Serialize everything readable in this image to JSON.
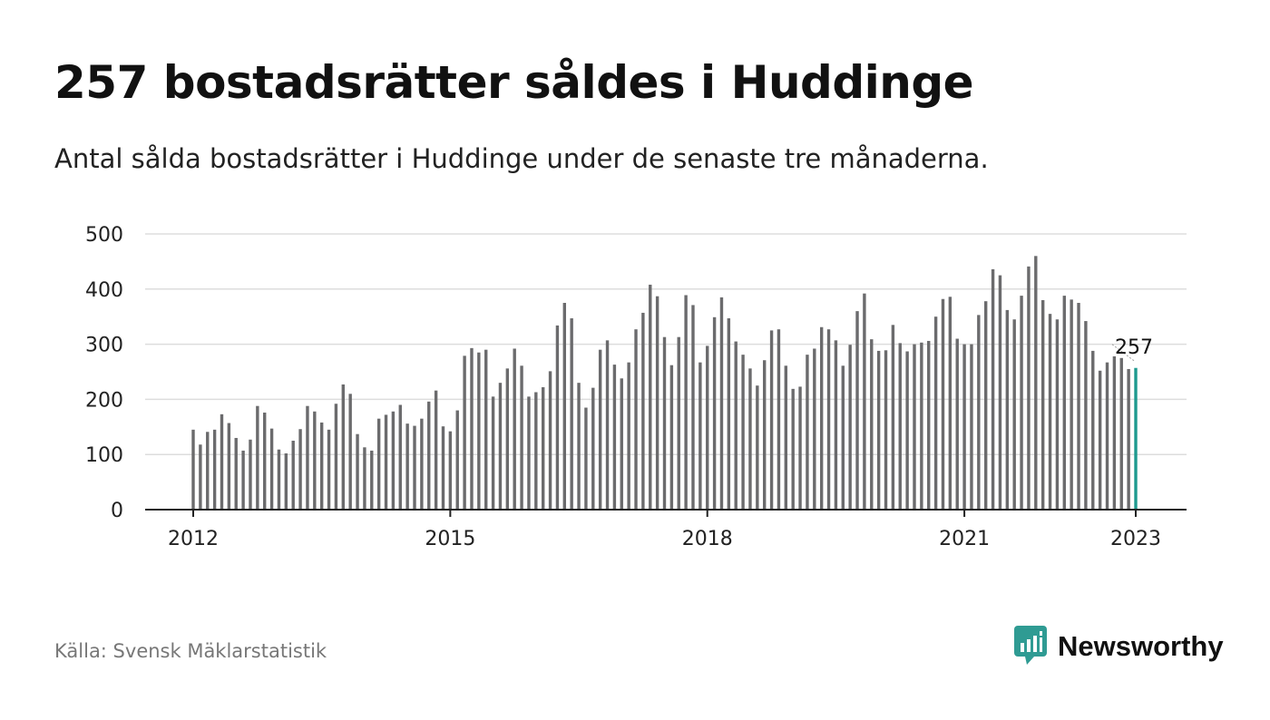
{
  "title": "257 bostadsrätter såldes i Huddinge",
  "subtitle": "Antal sålda bostadsrätter i Huddinge under de senaste tre månaderna.",
  "source": "Källa: Svensk Mäklarstatistik",
  "brand": {
    "name": "Newsworthy",
    "icon": "newsworthy-logo-icon",
    "color": "#2f9b93"
  },
  "colors": {
    "bar": "#6b6b6d",
    "highlight": "#1e9a8f",
    "grid": "#dddddd",
    "axis": "#222222"
  },
  "chart_data": {
    "type": "bar",
    "ylim": [
      0,
      500
    ],
    "yticks": [
      0,
      100,
      200,
      300,
      400,
      500
    ],
    "xticks": [
      {
        "label": "2012",
        "index": 0
      },
      {
        "label": "2015",
        "index": 36
      },
      {
        "label": "2018",
        "index": 72
      },
      {
        "label": "2021",
        "index": 108
      },
      {
        "label": "2023",
        "index": 132
      }
    ],
    "grid": true,
    "last_value_label": "257",
    "start": "2012-01",
    "values": [
      145,
      118,
      141,
      145,
      173,
      157,
      130,
      107,
      127,
      188,
      176,
      147,
      109,
      102,
      125,
      146,
      188,
      178,
      158,
      145,
      192,
      227,
      210,
      137,
      113,
      107,
      165,
      172,
      178,
      190,
      156,
      152,
      165,
      196,
      216,
      151,
      142,
      180,
      279,
      293,
      285,
      290,
      205,
      230,
      256,
      292,
      261,
      205,
      213,
      222,
      251,
      334,
      375,
      347,
      230,
      185,
      221,
      290,
      307,
      263,
      238,
      267,
      327,
      357,
      408,
      387,
      313,
      262,
      313,
      389,
      371,
      267,
      297,
      349,
      385,
      347,
      305,
      281,
      256,
      225,
      271,
      325,
      327,
      261,
      219,
      223,
      281,
      292,
      331,
      327,
      307,
      261,
      299,
      360,
      392,
      309,
      288,
      289,
      335,
      302,
      287,
      300,
      303,
      306,
      350,
      382,
      386,
      310,
      300,
      300,
      353,
      378,
      436,
      425,
      362,
      345,
      388,
      441,
      460,
      380,
      355,
      345,
      388,
      381,
      375,
      342,
      288,
      252,
      267,
      278,
      275,
      255,
      257
    ]
  }
}
